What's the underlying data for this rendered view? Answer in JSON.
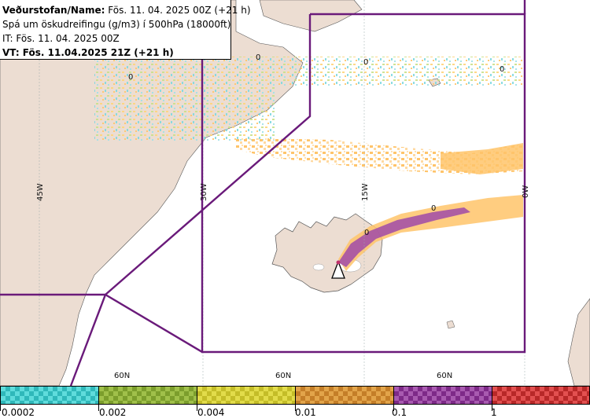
{
  "title": {
    "label": "Veðurstofan/Name:",
    "name_value": "Fös. 11. 04. 2025 00Z (+21 h)",
    "product": "Spá um öskudreifingu (g/m3) í 500hPa (18000ft)",
    "it_line": "IT: Fös. 11. 04. 2025 00Z",
    "vt_line": "VT: Fös. 11.04.2025 21Z (+21 h)"
  },
  "grid": {
    "meridians": [
      "45W",
      "30W",
      "15W",
      "0W"
    ],
    "parallels": [
      "60N",
      "60N",
      "60N"
    ]
  },
  "contour_labels": [
    "0",
    "0",
    "0",
    "0",
    "0",
    "0"
  ],
  "legend": {
    "ticks": [
      "0.0002",
      "0.002",
      "0.004",
      "0.01",
      "0.1",
      "1"
    ],
    "colors": [
      "#3fcfd0",
      "#8fb03a",
      "#d8d23a",
      "#d8943a",
      "#9a3fa0",
      "#d83a3a"
    ]
  },
  "colors": {
    "land": "#ecddd2",
    "sea": "#ffffff",
    "region_border": "#6a1a7a",
    "ash_low": "#ffc46a",
    "ash_high": "#a04aa8"
  }
}
